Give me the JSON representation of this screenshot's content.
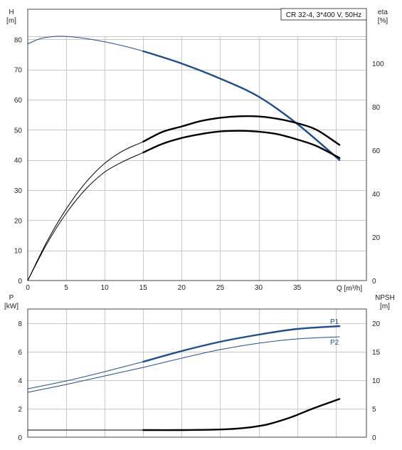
{
  "chart_data": [
    {
      "type": "line",
      "title": "CR 32-4, 3*400 V, 50Hz",
      "x_axis": {
        "unit_label": "Q [m³/h]",
        "range": [
          0,
          44
        ],
        "ticks": [
          0,
          5,
          10,
          15,
          20,
          25,
          30,
          35
        ]
      },
      "left_axis": {
        "label": "H",
        "unit": "[m]",
        "range": [
          0,
          90
        ],
        "ticks": [
          0,
          10,
          20,
          30,
          40,
          50,
          60,
          70,
          80
        ]
      },
      "right_axis": {
        "label": "eta",
        "unit": "[%]",
        "range": [
          0,
          125
        ],
        "ticks": [
          0,
          20,
          40,
          60,
          80,
          100
        ]
      },
      "grid": true,
      "series": [
        {
          "axis": "left",
          "color": "#1f4e8c",
          "x": [
            0,
            2,
            5,
            10,
            15,
            20,
            25,
            30,
            35,
            40.5
          ],
          "y": [
            78.5,
            80.5,
            81,
            79.2,
            76.1,
            72,
            67,
            61,
            52,
            40
          ],
          "emphasized_from": 15
        },
        {
          "axis": "right",
          "color": "#000000",
          "x": [
            0,
            2.5,
            5,
            7.5,
            10,
            12.5,
            15,
            17.5,
            20,
            22.5,
            25,
            27.5,
            30,
            32.5,
            35,
            37.5,
            40.5
          ],
          "y": [
            0,
            18,
            33,
            45,
            54,
            60,
            64,
            68.5,
            71,
            73.5,
            75,
            75.7,
            75.6,
            74.5,
            72.5,
            69.5,
            62.5
          ],
          "emphasized_from": 15
        },
        {
          "axis": "right",
          "color": "#000000",
          "x": [
            0,
            2.5,
            5,
            7.5,
            10,
            12.5,
            15,
            17.5,
            20,
            22.5,
            25,
            27.5,
            30,
            32.5,
            35,
            37.5,
            40.5
          ],
          "y": [
            0,
            17,
            31,
            42,
            50,
            55,
            59,
            63,
            65.7,
            67.5,
            68.7,
            69,
            68.6,
            67.4,
            65,
            62,
            56.5
          ],
          "emphasized_from": 15
        }
      ]
    },
    {
      "type": "line",
      "x_axis": {
        "range": [
          0,
          44
        ]
      },
      "left_axis": {
        "label": "P",
        "unit": "[kW]",
        "range": [
          0,
          9
        ],
        "ticks": [
          0,
          2,
          4,
          6,
          8
        ]
      },
      "right_axis": {
        "label": "NPSH",
        "unit": "[m]",
        "range": [
          0,
          22.5
        ],
        "ticks": [
          0,
          5,
          10,
          15,
          20
        ]
      },
      "grid": true,
      "series": [
        {
          "name": "P1",
          "axis": "left",
          "color": "#1f4e8c",
          "x": [
            0,
            5,
            10,
            15,
            20,
            25,
            30,
            35,
            40.5
          ],
          "y": [
            3.4,
            3.95,
            4.6,
            5.3,
            6.05,
            6.7,
            7.2,
            7.6,
            7.8
          ],
          "emphasized_from": 15
        },
        {
          "name": "P2",
          "axis": "left",
          "color": "#1f4e8c",
          "x": [
            0,
            5,
            10,
            15,
            20,
            25,
            30,
            35,
            40.5
          ],
          "y": [
            3.15,
            3.7,
            4.3,
            4.9,
            5.55,
            6.15,
            6.6,
            6.9,
            7.05
          ],
          "emphasized_from": 99
        },
        {
          "axis": "right",
          "color": "#000000",
          "x": [
            0,
            15,
            20,
            25,
            28,
            31,
            34,
            37,
            40.5
          ],
          "y": [
            1.25,
            1.25,
            1.25,
            1.35,
            1.6,
            2.2,
            3.4,
            5.0,
            6.7
          ],
          "emphasized_from": 15
        }
      ]
    }
  ]
}
